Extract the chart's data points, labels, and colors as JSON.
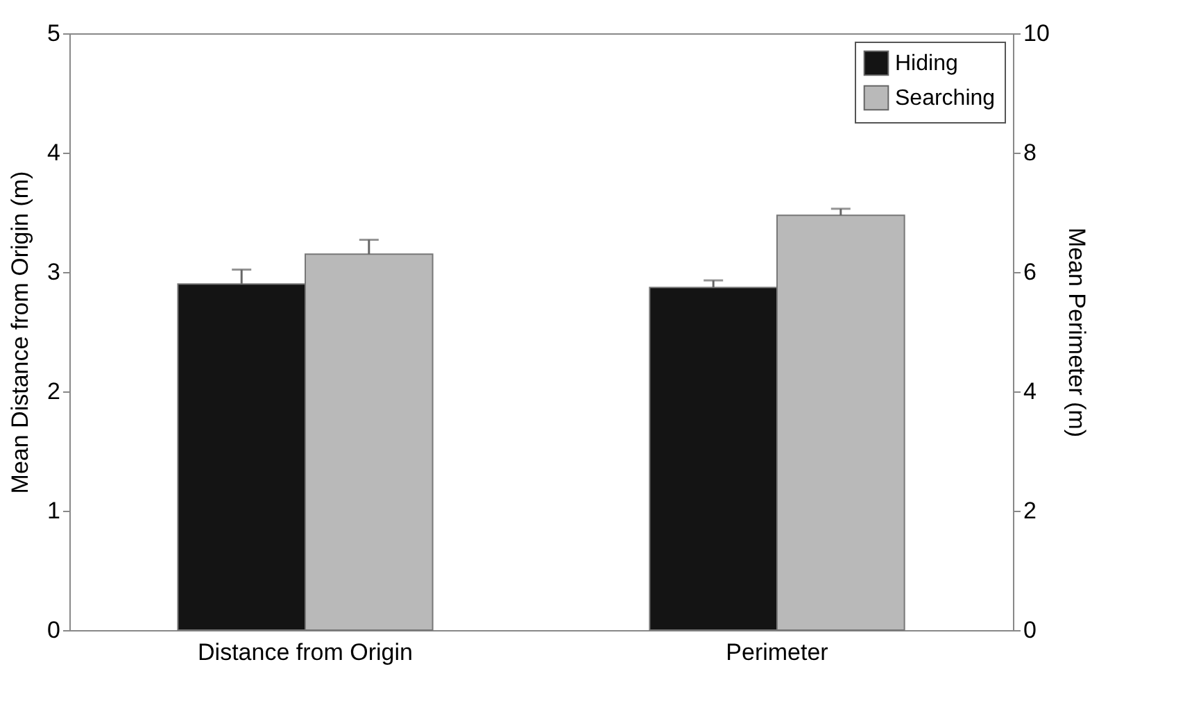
{
  "chart_data": {
    "type": "bar",
    "categories": [
      "Distance from Origin",
      "Perimeter"
    ],
    "ylabel": "Mean Distance from Origin (m)",
    "y2label": "Mean Perimeter (m)",
    "ylim": [
      0,
      5
    ],
    "yticks": [
      0,
      1,
      2,
      3,
      4,
      5
    ],
    "y2lim": [
      0,
      10
    ],
    "y2ticks": [
      0,
      2,
      4,
      6,
      8,
      10
    ],
    "series": [
      {
        "name": "Hiding",
        "color": "#141414",
        "values": [
          2.9,
          null
        ],
        "errors": [
          0.12,
          null
        ]
      },
      {
        "name": "Searching",
        "color": "#b9b9b9",
        "values": [
          3.15,
          null
        ],
        "errors": [
          0.12,
          null
        ]
      },
      {
        "color": "#141414",
        "axis": "y2",
        "values": [
          null,
          5.74
        ],
        "errors": [
          null,
          0.12
        ]
      },
      {
        "color": "#b9b9b9",
        "axis": "y2",
        "values": [
          null,
          6.95
        ],
        "errors": [
          null,
          0.11
        ]
      }
    ],
    "legend": "top right",
    "grid": false
  }
}
